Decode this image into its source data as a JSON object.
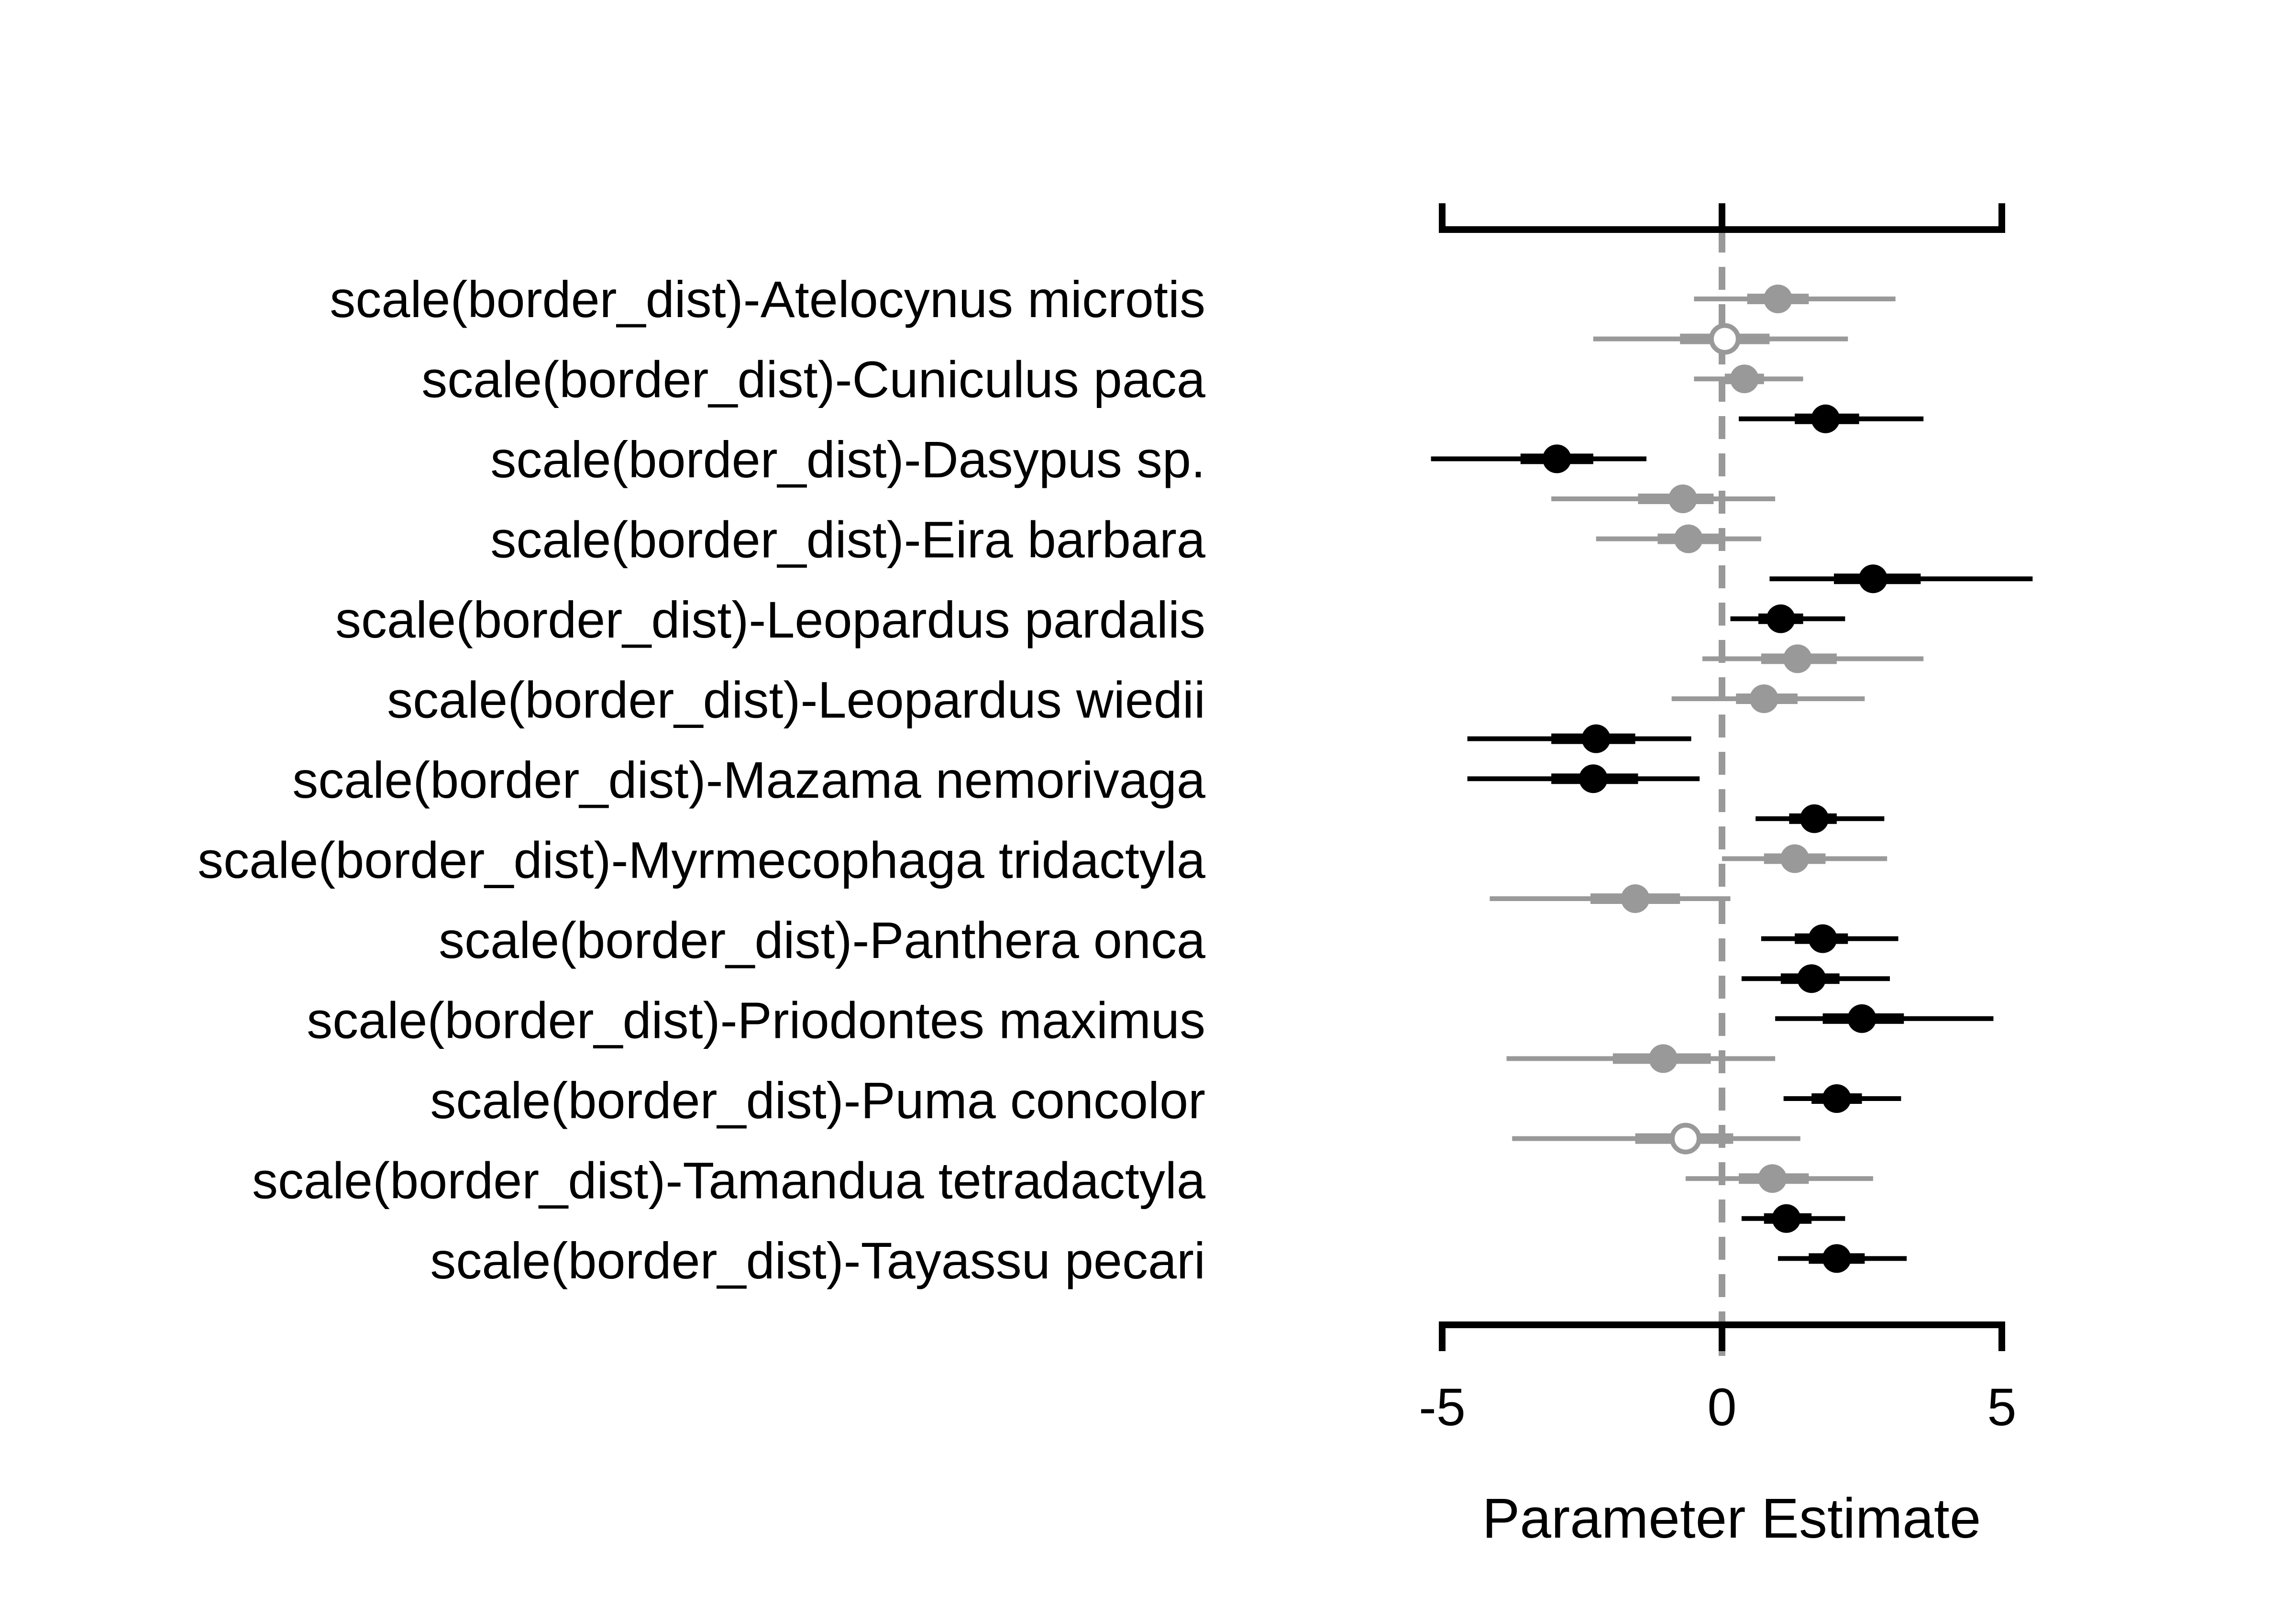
{
  "chart_data": {
    "type": "coefficient-forest",
    "xlabel": "Parameter Estimate",
    "xlim": [
      -5,
      5
    ],
    "xticks": [
      -5,
      0,
      5
    ],
    "xtick_labels": [
      "-5",
      "0",
      "5"
    ],
    "reference_line": 0,
    "labels": [
      "scale(border_dist)-Atelocynus microtis",
      "scale(border_dist)-Cuniculus paca",
      "scale(border_dist)-Dasypus sp.",
      "scale(border_dist)-Eira barbara",
      "scale(border_dist)-Leopardus pardalis",
      "scale(border_dist)-Leopardus wiedii",
      "scale(border_dist)-Mazama nemorivaga",
      "scale(border_dist)-Myrmecophaga tridactyla",
      "scale(border_dist)-Panthera onca",
      "scale(border_dist)-Priodontes maximus",
      "scale(border_dist)-Puma concolor",
      "scale(border_dist)-Tamandua tetradactyla",
      "scale(border_dist)-Tayassu pecari"
    ],
    "estimates": [
      {
        "est": 1.0,
        "lo95": -0.5,
        "hi95": 3.1,
        "lo50": 0.45,
        "hi50": 1.55,
        "color": "gray",
        "filled": true
      },
      {
        "est": 0.05,
        "lo95": -2.3,
        "hi95": 2.25,
        "lo50": -0.75,
        "hi50": 0.85,
        "color": "gray",
        "filled": false
      },
      {
        "est": 0.4,
        "lo95": -0.5,
        "hi95": 1.45,
        "lo50": 0.05,
        "hi50": 0.75,
        "color": "gray",
        "filled": true
      },
      {
        "est": 1.85,
        "lo95": 0.3,
        "hi95": 3.6,
        "lo50": 1.3,
        "hi50": 2.45,
        "color": "black",
        "filled": true
      },
      {
        "est": -2.95,
        "lo95": -5.2,
        "hi95": -1.35,
        "lo50": -3.6,
        "hi50": -2.3,
        "color": "black",
        "filled": true
      },
      {
        "est": -0.7,
        "lo95": -3.05,
        "hi95": 0.95,
        "lo50": -1.5,
        "hi50": -0.15,
        "color": "gray",
        "filled": true
      },
      {
        "est": -0.6,
        "lo95": -2.25,
        "hi95": 0.7,
        "lo50": -1.15,
        "hi50": -0.05,
        "color": "gray",
        "filled": true
      },
      {
        "est": 2.7,
        "lo95": 0.85,
        "hi95": 5.55,
        "lo50": 2.0,
        "hi50": 3.55,
        "color": "black",
        "filled": true
      },
      {
        "est": 1.05,
        "lo95": 0.15,
        "hi95": 2.2,
        "lo50": 0.65,
        "hi50": 1.45,
        "color": "black",
        "filled": true
      },
      {
        "est": 1.35,
        "lo95": -0.35,
        "hi95": 3.6,
        "lo50": 0.7,
        "hi50": 2.05,
        "color": "gray",
        "filled": true
      },
      {
        "est": 0.75,
        "lo95": -0.9,
        "hi95": 2.55,
        "lo50": 0.25,
        "hi50": 1.35,
        "color": "gray",
        "filled": true
      },
      {
        "est": -2.25,
        "lo95": -4.55,
        "hi95": -0.55,
        "lo50": -3.05,
        "hi50": -1.55,
        "color": "black",
        "filled": true
      },
      {
        "est": -2.3,
        "lo95": -4.55,
        "hi95": -0.4,
        "lo50": -3.05,
        "hi50": -1.5,
        "color": "black",
        "filled": true
      },
      {
        "est": 1.65,
        "lo95": 0.6,
        "hi95": 2.9,
        "lo50": 1.2,
        "hi50": 2.05,
        "color": "black",
        "filled": true
      },
      {
        "est": 1.3,
        "lo95": 0.0,
        "hi95": 2.95,
        "lo50": 0.75,
        "hi50": 1.85,
        "color": "gray",
        "filled": true
      },
      {
        "est": -1.55,
        "lo95": -4.15,
        "hi95": 0.15,
        "lo50": -2.35,
        "hi50": -0.75,
        "color": "gray",
        "filled": true
      },
      {
        "est": 1.8,
        "lo95": 0.7,
        "hi95": 3.15,
        "lo50": 1.3,
        "hi50": 2.25,
        "color": "black",
        "filled": true
      },
      {
        "est": 1.6,
        "lo95": 0.35,
        "hi95": 3.0,
        "lo50": 1.05,
        "hi50": 2.1,
        "color": "black",
        "filled": true
      },
      {
        "est": 2.5,
        "lo95": 0.95,
        "hi95": 4.85,
        "lo50": 1.8,
        "hi50": 3.25,
        "color": "black",
        "filled": true
      },
      {
        "est": -1.05,
        "lo95": -3.85,
        "hi95": 0.95,
        "lo50": -1.95,
        "hi50": -0.2,
        "color": "gray",
        "filled": true
      },
      {
        "est": 2.05,
        "lo95": 1.1,
        "hi95": 3.2,
        "lo50": 1.6,
        "hi50": 2.5,
        "color": "black",
        "filled": true
      },
      {
        "est": -0.65,
        "lo95": -3.75,
        "hi95": 1.4,
        "lo50": -1.55,
        "hi50": 0.2,
        "color": "gray",
        "filled": false
      },
      {
        "est": 0.9,
        "lo95": -0.65,
        "hi95": 2.7,
        "lo50": 0.3,
        "hi50": 1.55,
        "color": "gray",
        "filled": true
      },
      {
        "est": 1.15,
        "lo95": 0.35,
        "hi95": 2.2,
        "lo50": 0.75,
        "hi50": 1.6,
        "color": "black",
        "filled": true
      },
      {
        "est": 2.05,
        "lo95": 1.0,
        "hi95": 3.3,
        "lo50": 1.55,
        "hi50": 2.55,
        "color": "black",
        "filled": true
      }
    ],
    "colors": {
      "black": "#000000",
      "gray": "#999999",
      "reference_line": "#999999"
    },
    "grid": false,
    "legend": "none"
  }
}
